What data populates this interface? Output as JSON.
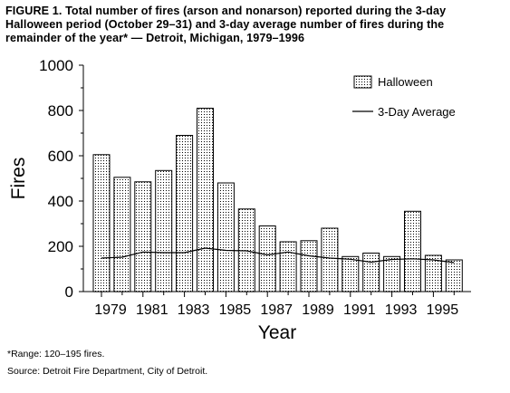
{
  "figure": {
    "title": "FIGURE 1. Total number of fires (arson and nonarson) reported during the 3-day Halloween period (October 29–31) and 3-day average number of fires during the remainder of the year* — Detroit, Michigan, 1979–1996",
    "footnote": "*Range: 120–195 fires.",
    "source": "Source: Detroit Fire Department, City of Detroit."
  },
  "colors": {
    "axis": "#000000",
    "bar_fill": "#ffffff",
    "bar_stipple": "#000000",
    "line": "#000000"
  },
  "chart_data": {
    "type": "bar",
    "xlabel": "Year",
    "ylabel": "Fires",
    "ylim": [
      0,
      1000
    ],
    "y_ticks": [
      0,
      200,
      400,
      600,
      800,
      1000
    ],
    "x": [
      1979,
      1980,
      1981,
      1982,
      1983,
      1984,
      1985,
      1986,
      1987,
      1988,
      1989,
      1990,
      1991,
      1992,
      1993,
      1994,
      1995,
      1996
    ],
    "x_tick_labels": [
      "1979",
      "1981",
      "1983",
      "1985",
      "1987",
      "1989",
      "1991",
      "1993",
      "1995"
    ],
    "legend_position": "top-right",
    "series": [
      {
        "name": "Halloween",
        "type": "bar",
        "values": [
          605,
          505,
          485,
          535,
          690,
          810,
          480,
          365,
          290,
          220,
          225,
          280,
          155,
          170,
          155,
          355,
          160,
          140
        ]
      },
      {
        "name": "3-Day Average",
        "type": "line",
        "values": [
          148,
          152,
          175,
          172,
          172,
          192,
          182,
          180,
          162,
          175,
          158,
          148,
          143,
          130,
          142,
          145,
          140,
          128
        ]
      }
    ]
  }
}
